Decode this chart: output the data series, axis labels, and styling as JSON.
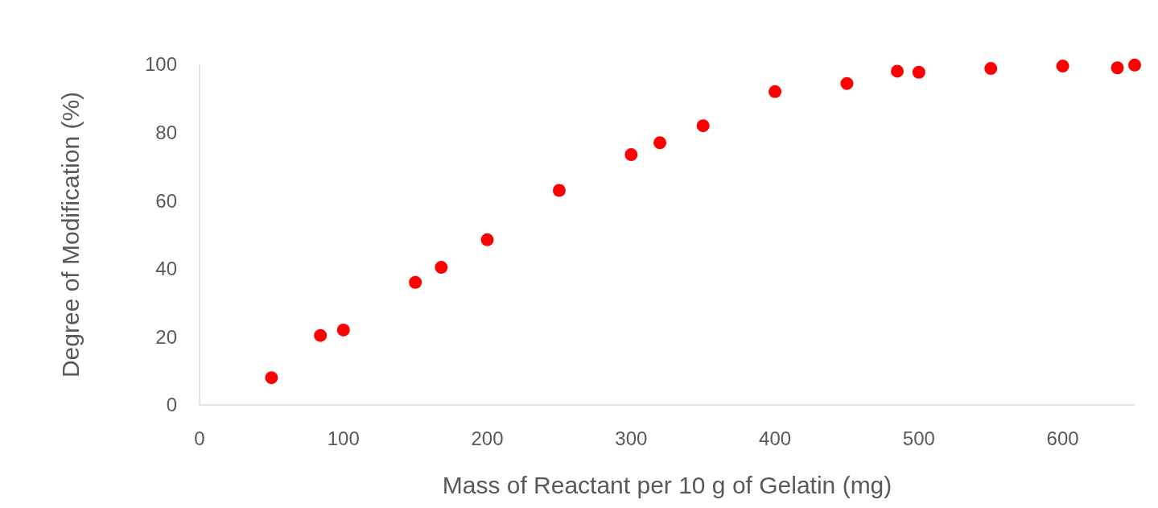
{
  "chart_data": {
    "type": "scatter",
    "xlabel": "Mass of Reactant per 10 g of Gelatin (mg)",
    "ylabel": "Degree of Modification (%)",
    "x": [
      50,
      84,
      100,
      150,
      168,
      200,
      250,
      300,
      320,
      350,
      400,
      450,
      485,
      500,
      550,
      600,
      638,
      650
    ],
    "series": [
      {
        "color": "#ff0000",
        "values": [
          8,
          20.4,
          22,
          36,
          40.4,
          48.5,
          63,
          73.5,
          77,
          82,
          92,
          94.4,
          98,
          97.7,
          98.8,
          99.5,
          99,
          99.8
        ]
      }
    ],
    "xlim": [
      0,
      650
    ],
    "xticks": [
      0,
      100,
      200,
      300,
      400,
      500,
      600
    ],
    "ylim": [
      0,
      100
    ],
    "yticks": [
      0,
      20,
      40,
      60,
      80,
      100
    ],
    "marker": "circle",
    "grid": false
  }
}
